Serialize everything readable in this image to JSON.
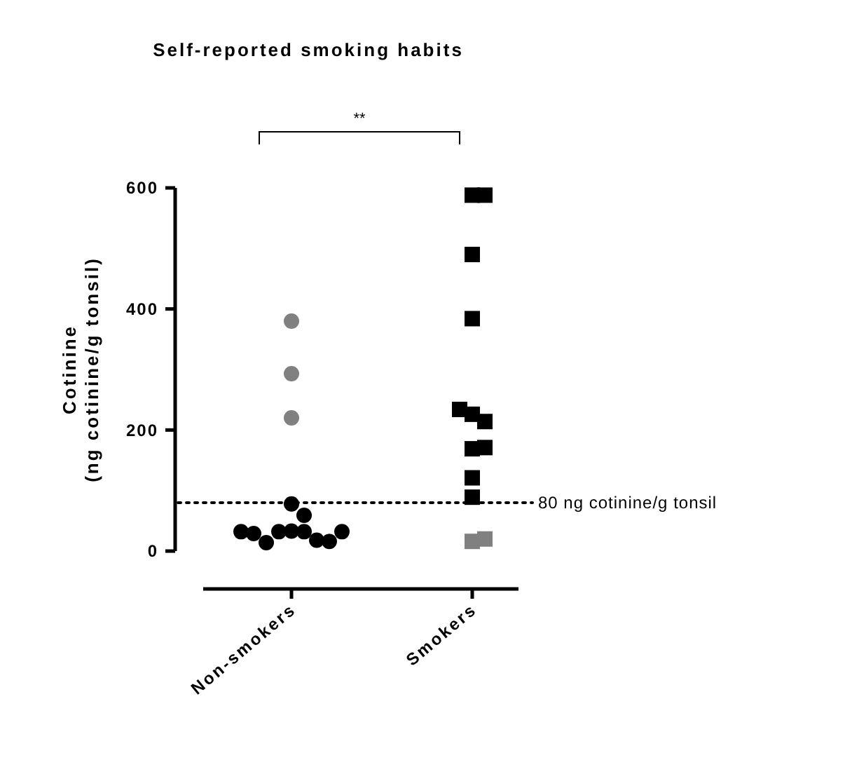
{
  "chart_data": {
    "type": "scatter",
    "title": "Self-reported smoking habits",
    "ylabel": "Cotinine\n(ng cotinine/g tonsil)",
    "categories": [
      "Non-smokers",
      "Smokers"
    ],
    "series": [
      {
        "color": "#000000",
        "marker": "circle",
        "x": [
          "Non-smokers",
          "Non-smokers",
          "Non-smokers",
          "Non-smokers",
          "Non-smokers",
          "Non-smokers",
          "Non-smokers",
          "Non-smokers",
          "Non-smokers",
          "Non-smokers",
          "Non-smokers"
        ],
        "values": [
          78,
          59,
          33,
          32,
          32,
          18,
          14,
          16,
          29,
          32,
          32
        ]
      },
      {
        "color": "#808080",
        "marker": "circle",
        "x": [
          "Non-smokers",
          "Non-smokers",
          "Non-smokers"
        ],
        "values": [
          380,
          293,
          220
        ]
      },
      {
        "color": "#000000",
        "marker": "square",
        "x": [
          "Smokers",
          "Smokers",
          "Smokers",
          "Smokers",
          "Smokers",
          "Smokers",
          "Smokers",
          "Smokers",
          "Smokers",
          "Smokers",
          "Smokers"
        ],
        "values": [
          588,
          588,
          490,
          384,
          226,
          214,
          234,
          169,
          171,
          121,
          89
        ]
      },
      {
        "color": "#808080",
        "marker": "square",
        "x": [
          "Smokers",
          "Smokers"
        ],
        "values": [
          16,
          20
        ]
      }
    ],
    "ylim": [
      0,
      600
    ],
    "yticks": [
      0,
      200,
      400,
      600
    ],
    "ref_lines": [
      {
        "axis": "y",
        "value": 80,
        "label": "80 ng cotinine/g tonsil",
        "line_style": "dotted",
        "color": "#000000"
      }
    ],
    "annotations": [
      "**"
    ]
  }
}
